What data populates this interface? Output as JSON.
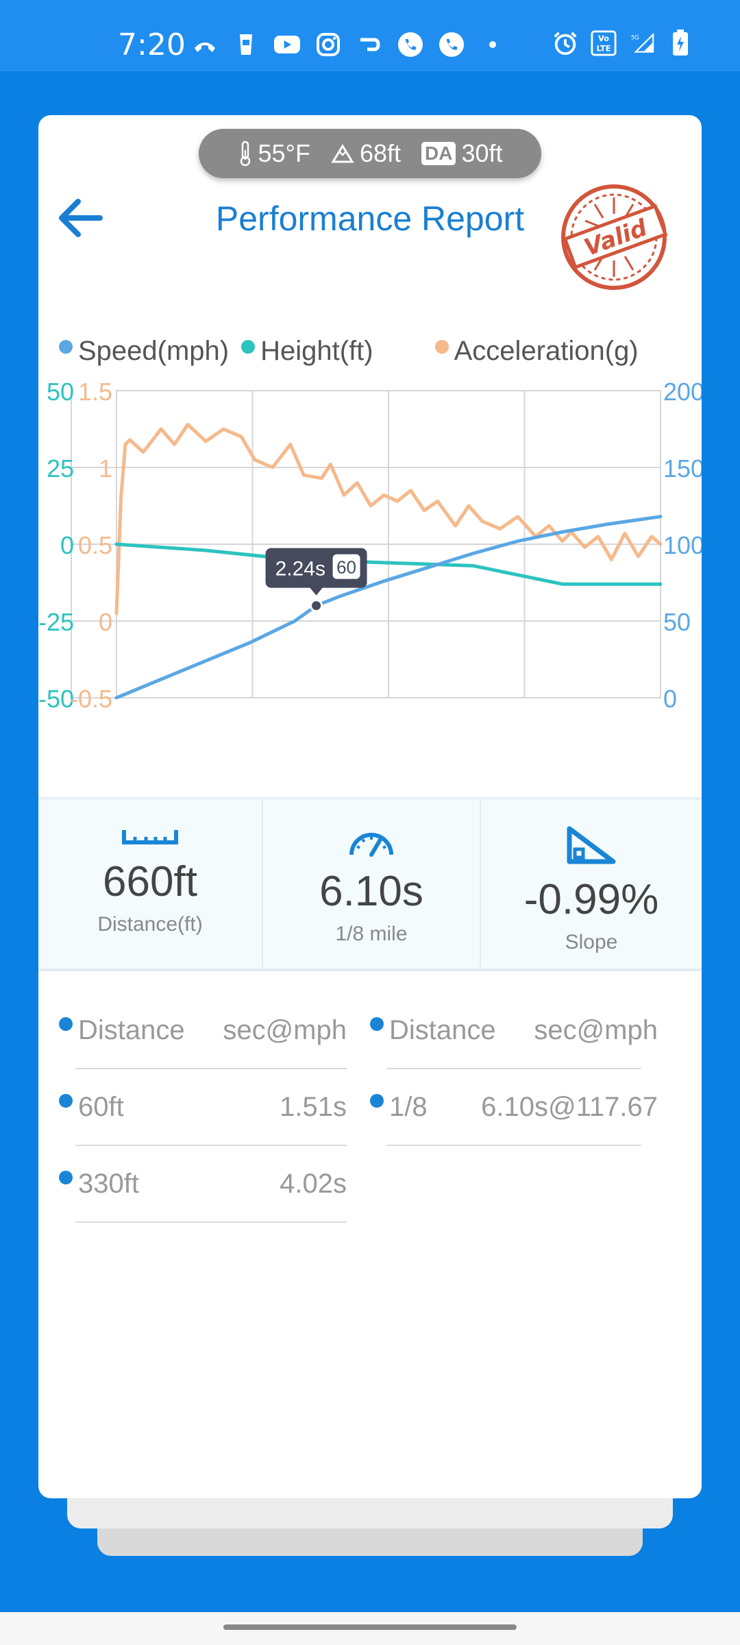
{
  "status_bar": {
    "time": "7:20",
    "left_icons": [
      "missed-call-icon",
      "cup-icon",
      "youtube-icon",
      "instagram-icon",
      "pay-icon",
      "phone-icon",
      "phone-icon",
      "dot-icon"
    ],
    "right_icons": [
      "alarm-icon",
      "volte-icon",
      "5g-signal-icon",
      "battery-icon"
    ],
    "network": "5G",
    "volte_label": "Vo LTE"
  },
  "conditions": {
    "temperature": "55°F",
    "altitude": "68ft",
    "density_altitude_label": "DA",
    "density_altitude": "30ft"
  },
  "header": {
    "title": "Performance Report",
    "stamp_text": "Valid"
  },
  "legend": [
    {
      "label": "Speed(mph)",
      "color": "#5aa7e4"
    },
    {
      "label": "Height(ft)",
      "color": "#2cc3c0"
    },
    {
      "label": "Acceleration(g)",
      "color": "#f5b98b"
    }
  ],
  "chart_data": {
    "type": "line",
    "x_range": [
      0,
      6.1
    ],
    "axes": {
      "height_left": {
        "ticks": [
          "50",
          "25",
          "0",
          "-25",
          "-50"
        ],
        "range": [
          -50,
          50
        ],
        "color": "#2cc3c0"
      },
      "accel_left": {
        "ticks": [
          "1.5",
          "1",
          "0.5",
          "0",
          "-0.5"
        ],
        "range": [
          -0.5,
          1.5
        ],
        "color": "#f5b98b"
      },
      "speed_right": {
        "ticks": [
          "200",
          "150",
          "100",
          "50",
          "0"
        ],
        "range": [
          0,
          200
        ],
        "color": "#5aa7e4"
      }
    },
    "series": [
      {
        "name": "Speed(mph)",
        "axis": "speed_right",
        "color": "#5aa7e4",
        "x": [
          0,
          0.5,
          1.0,
          1.5,
          2.0,
          2.24,
          2.5,
          3.0,
          3.5,
          4.0,
          4.5,
          5.0,
          5.5,
          6.1
        ],
        "y": [
          0,
          12,
          24,
          36,
          50,
          60,
          66,
          76,
          85,
          94,
          102,
          108,
          113,
          118
        ]
      },
      {
        "name": "Height(ft)",
        "axis": "height_left",
        "color": "#2cc3c0",
        "x": [
          0,
          1,
          2,
          3,
          4,
          5,
          6.1
        ],
        "y": [
          0,
          -2,
          -5,
          -6,
          -7,
          -13,
          -13
        ]
      },
      {
        "name": "Acceleration(g)",
        "axis": "accel_left",
        "color": "#f5b98b",
        "x": [
          0,
          0.05,
          0.1,
          0.15,
          0.3,
          0.5,
          0.65,
          0.8,
          1.0,
          1.2,
          1.4,
          1.55,
          1.75,
          1.95,
          2.1,
          2.3,
          2.4,
          2.55,
          2.7,
          2.85,
          3.0,
          3.15,
          3.3,
          3.45,
          3.6,
          3.8,
          3.95,
          4.1,
          4.3,
          4.5,
          4.7,
          4.85,
          5.0,
          5.1,
          5.25,
          5.4,
          5.55,
          5.7,
          5.85,
          6.0,
          6.1
        ],
        "y": [
          0.05,
          0.8,
          1.15,
          1.18,
          1.1,
          1.25,
          1.15,
          1.28,
          1.17,
          1.25,
          1.2,
          1.05,
          1.0,
          1.15,
          0.95,
          0.93,
          1.02,
          0.82,
          0.9,
          0.75,
          0.82,
          0.78,
          0.85,
          0.72,
          0.78,
          0.62,
          0.75,
          0.65,
          0.6,
          0.68,
          0.55,
          0.62,
          0.52,
          0.58,
          0.48,
          0.55,
          0.4,
          0.57,
          0.42,
          0.55,
          0.5
        ]
      }
    ],
    "tooltip": {
      "time_label": "2.24s",
      "value_label": "60",
      "x": 2.24,
      "speed": 60
    },
    "grid": true
  },
  "stats": [
    {
      "icon": "ruler-icon",
      "value": "660ft",
      "label": "Distance(ft)"
    },
    {
      "icon": "speedometer-icon",
      "value": "6.10s",
      "label": "1/8 mile"
    },
    {
      "icon": "slope-icon",
      "value": "-0.99%",
      "label": "Slope"
    }
  ],
  "splits": {
    "headers": [
      {
        "left": "Distance",
        "right": "sec@mph"
      },
      {
        "left": "Distance",
        "right": "sec@mph"
      }
    ],
    "rows": [
      [
        {
          "left": "60ft",
          "right": "1.51s"
        },
        {
          "left": "1/8",
          "right": "6.10s@117.67"
        }
      ],
      [
        {
          "left": "330ft",
          "right": "4.02s"
        }
      ]
    ]
  }
}
